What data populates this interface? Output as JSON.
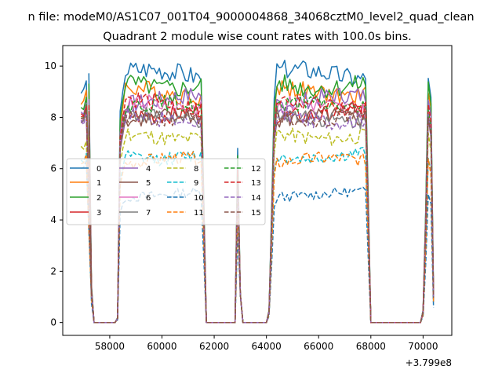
{
  "chart_data": {
    "type": "line",
    "suptitle": "n file: modeM0/AS1C07_001T04_9000004868_34068cztM0_level2_quad_clean",
    "title": "Quadrant 2 module wise count rates with 100.0s bins.",
    "xlabel": "",
    "ylabel": "",
    "x_offset_label": "+3.799e8",
    "xlim": [
      56200,
      71100
    ],
    "ylim": [
      -0.5,
      10.8
    ],
    "xticks": [
      {
        "value": 58000,
        "label": "58000"
      },
      {
        "value": 60000,
        "label": "60000"
      },
      {
        "value": 62000,
        "label": "62000"
      },
      {
        "value": 64000,
        "label": "64000"
      },
      {
        "value": 66000,
        "label": "66000"
      },
      {
        "value": 68000,
        "label": "68000"
      },
      {
        "value": 70000,
        "label": "70000"
      }
    ],
    "yticks": [
      {
        "value": 0,
        "label": "0"
      },
      {
        "value": 2,
        "label": "2"
      },
      {
        "value": 4,
        "label": "4"
      },
      {
        "value": 6,
        "label": "6"
      },
      {
        "value": 8,
        "label": "8"
      },
      {
        "value": 10,
        "label": "10"
      }
    ],
    "grid": false,
    "legend_position": "center-left",
    "x_segments": [
      {
        "shape": "flat",
        "x": [
          56900,
          57000,
          57100,
          57200,
          57300
        ],
        "y": [
          1.0,
          1.0,
          1.05,
          0.6,
          0.15
        ],
        "abs": true
      },
      {
        "shape": "ramp_down",
        "x": [
          57200,
          57300,
          57400
        ],
        "y": [
          1,
          0.15,
          0
        ]
      },
      {
        "shape": "zero",
        "x": [
          57500,
          57600,
          57700,
          57800,
          57900,
          58000,
          58100,
          58200
        ]
      },
      {
        "shape": "ramp_up",
        "x": [
          58300,
          58400,
          58500
        ],
        "y": [
          0.02,
          0.85,
          0.93
        ]
      },
      {
        "shape": "flat",
        "x": [
          58600,
          58700,
          58800,
          58900,
          59000,
          59100,
          59200,
          59300,
          59400,
          59500,
          59600,
          59700,
          59800,
          59900,
          60000,
          60100,
          60200,
          60300,
          60400,
          60500,
          60600,
          60700,
          60800,
          60900,
          61000,
          61100,
          61200,
          61300,
          61400,
          61500
        ]
      },
      {
        "shape": "ramp_down",
        "x": [
          61600,
          61700
        ],
        "y": [
          0.5,
          0
        ]
      },
      {
        "shape": "zero",
        "x": [
          61800,
          61900,
          62000,
          62100,
          62200,
          62300,
          62400,
          62500,
          62600,
          62700,
          62800
        ]
      },
      {
        "shape": "spike",
        "x": [
          62900,
          63000,
          63100
        ],
        "y": [
          0.7,
          1.1,
          0
        ]
      },
      {
        "shape": "zero",
        "x": [
          63200,
          63300,
          63400,
          63500,
          63600,
          63700,
          63800,
          63900,
          64000
        ]
      },
      {
        "shape": "ramp_up",
        "x": [
          64100,
          64200,
          64300
        ],
        "y": [
          0.05,
          0.45,
          0.9
        ]
      },
      {
        "shape": "flat",
        "x": [
          64400,
          64500,
          64600,
          64700,
          64800,
          64900,
          65000,
          65100,
          65200,
          65300,
          65400,
          65500,
          65600,
          65700,
          65800,
          65900,
          66000,
          66100,
          66200,
          66300,
          66400,
          66500,
          66600,
          66700,
          66800,
          66900,
          67000,
          67100,
          67200,
          67300,
          67400,
          67500,
          67600,
          67700,
          67800
        ]
      },
      {
        "shape": "ramp_down",
        "x": [
          67900,
          68000
        ],
        "y": [
          0.5,
          0
        ]
      },
      {
        "shape": "zero",
        "x": [
          68100,
          68200,
          68300,
          68400,
          68500,
          68600,
          68700,
          68800,
          68900,
          69000,
          69100,
          69200,
          69300,
          69400,
          69500,
          69600,
          69700,
          69800,
          69900
        ]
      },
      {
        "shape": "ramp_up",
        "x": [
          70000,
          70100
        ],
        "y": [
          0.05,
          0.45
        ]
      },
      {
        "shape": "spike",
        "x": [
          70200,
          70300,
          70400
        ],
        "y": [
          1.0,
          0.92,
          0.12
        ]
      }
    ],
    "series": [
      {
        "name": "0",
        "color": "#1f77b4",
        "dash": "solid",
        "level": 9.7,
        "start": 9.0
      },
      {
        "name": "1",
        "color": "#ff7f0e",
        "dash": "solid",
        "level": 9.0,
        "start": 8.6
      },
      {
        "name": "2",
        "color": "#2ca02c",
        "dash": "solid",
        "level": 9.3,
        "start": 8.3
      },
      {
        "name": "3",
        "color": "#d62728",
        "dash": "solid",
        "level": 8.2,
        "start": 8.1
      },
      {
        "name": "4",
        "color": "#9467bd",
        "dash": "solid",
        "level": 8.7,
        "start": 8.2
      },
      {
        "name": "5",
        "color": "#8c564b",
        "dash": "solid",
        "level": 7.9,
        "start": 7.8
      },
      {
        "name": "6",
        "color": "#e377c2",
        "dash": "solid",
        "level": 8.4,
        "start": 7.9
      },
      {
        "name": "7",
        "color": "#7f7f7f",
        "dash": "solid",
        "level": 8.0,
        "start": 7.9
      },
      {
        "name": "8",
        "color": "#bcbd22",
        "dash": "dashed",
        "level": 7.3,
        "start": 6.8
      },
      {
        "name": "9",
        "color": "#17becf",
        "dash": "dashed",
        "level": 6.5,
        "start": 6.3
      },
      {
        "name": "10",
        "color": "#1f77b4",
        "dash": "dashed",
        "level": 5.0,
        "start": 6.0
      },
      {
        "name": "11",
        "color": "#ff7f0e",
        "dash": "dashed",
        "level": 6.3,
        "start": 6.2
      },
      {
        "name": "12",
        "color": "#2ca02c",
        "dash": "dashed",
        "level": 8.4,
        "start": 8.0
      },
      {
        "name": "13",
        "color": "#d62728",
        "dash": "dashed",
        "level": 8.5,
        "start": 8.1
      },
      {
        "name": "14",
        "color": "#9467bd",
        "dash": "dashed",
        "level": 8.0,
        "start": 7.8
      },
      {
        "name": "15",
        "color": "#8c564b",
        "dash": "dashed",
        "level": 8.1,
        "start": 7.9
      }
    ]
  }
}
